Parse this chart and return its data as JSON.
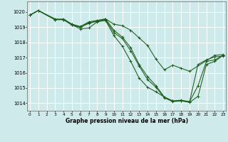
{
  "title": "Graphe pression niveau de la mer (hPa)",
  "bg_color": "#ceeaea",
  "line_color": "#1a5c1a",
  "grid_color": "#ffffff",
  "ylim": [
    1013.5,
    1020.7
  ],
  "xlim": [
    -0.3,
    23.3
  ],
  "yticks": [
    1014,
    1015,
    1016,
    1017,
    1018,
    1019,
    1020
  ],
  "xticks": [
    0,
    1,
    2,
    3,
    4,
    5,
    6,
    7,
    8,
    9,
    10,
    11,
    12,
    13,
    14,
    15,
    16,
    17,
    18,
    19,
    20,
    21,
    22,
    23
  ],
  "series": [
    {
      "x": [
        0,
        1,
        3,
        4,
        5,
        6,
        7,
        8,
        9,
        10,
        11,
        12,
        13,
        14,
        15,
        16,
        17,
        18,
        19,
        22,
        23
      ],
      "y": [
        1019.8,
        1020.1,
        1019.5,
        1019.55,
        1019.2,
        1019.05,
        1019.35,
        1019.45,
        1019.55,
        1019.2,
        1019.1,
        1018.8,
        1018.3,
        1017.8,
        1016.9,
        1016.2,
        1016.5,
        1016.3,
        1016.1,
        1017.15,
        1017.2
      ]
    },
    {
      "x": [
        0,
        1,
        3,
        4,
        5,
        6,
        7,
        8,
        9,
        10,
        11,
        12,
        13,
        14,
        15,
        16,
        17,
        18,
        19,
        20,
        21,
        22,
        23
      ],
      "y": [
        1019.8,
        1020.1,
        1019.55,
        1019.5,
        1019.2,
        1019.0,
        1019.3,
        1019.4,
        1019.55,
        1018.8,
        1018.35,
        1017.65,
        1016.55,
        1015.75,
        1015.15,
        1014.4,
        1014.15,
        1014.2,
        1014.1,
        1016.55,
        1016.85,
        1017.05,
        1017.1
      ]
    },
    {
      "x": [
        0,
        1,
        3,
        4,
        5,
        6,
        7,
        8,
        9,
        10,
        11,
        12,
        13,
        14,
        15,
        16,
        17,
        18,
        19,
        20,
        21,
        22,
        23
      ],
      "y": [
        1019.8,
        1020.1,
        1019.5,
        1019.5,
        1019.15,
        1019.0,
        1019.25,
        1019.4,
        1019.5,
        1018.65,
        1018.25,
        1017.45,
        1016.45,
        1015.55,
        1015.05,
        1014.35,
        1014.1,
        1014.15,
        1014.1,
        1015.15,
        1016.75,
        1016.85,
        1017.15
      ]
    },
    {
      "x": [
        0,
        1,
        3,
        4,
        5,
        6,
        7,
        8,
        9,
        10,
        11,
        12,
        13,
        14,
        15,
        16,
        17,
        18,
        19,
        20,
        21,
        22,
        23
      ],
      "y": [
        1019.8,
        1020.1,
        1019.5,
        1019.5,
        1019.15,
        1018.9,
        1018.95,
        1019.35,
        1019.45,
        1018.45,
        1017.75,
        1016.75,
        1015.65,
        1015.05,
        1014.75,
        1014.4,
        1014.15,
        1014.15,
        1014.05,
        1014.45,
        1016.55,
        1016.75,
        1017.15
      ]
    }
  ]
}
